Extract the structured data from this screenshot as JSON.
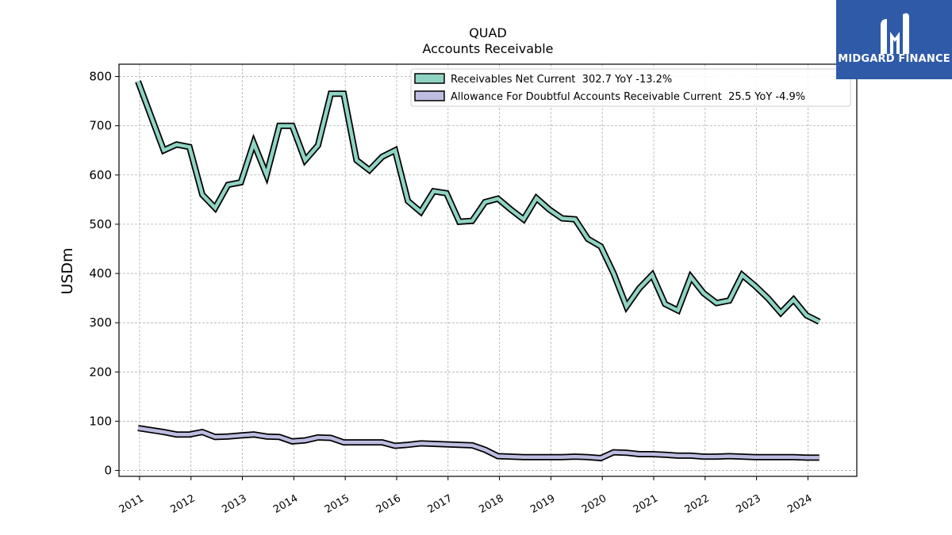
{
  "chart_data": {
    "type": "line",
    "title": "QUAD",
    "subtitle": "Accounts Receivable",
    "xlabel": "",
    "ylabel": "USDm",
    "ylim": [
      -12,
      825
    ],
    "xlim": [
      2010.6,
      2024.95
    ],
    "grid": true,
    "legend_position": "top-right",
    "yticks": [
      0,
      100,
      200,
      300,
      400,
      500,
      600,
      700,
      800
    ],
    "xticks": [
      "2011",
      "2012",
      "2013",
      "2014",
      "2015",
      "2016",
      "2017",
      "2018",
      "2019",
      "2020",
      "2021",
      "2022",
      "2023",
      "2024"
    ],
    "series": [
      {
        "name": "Receivables Net Current  302.7 YoY -13.2%",
        "color": "#8fd3c3",
        "x": [
          2010.97,
          2011.22,
          2011.47,
          2011.72,
          2011.97,
          2012.22,
          2012.47,
          2012.72,
          2012.97,
          2013.22,
          2013.47,
          2013.72,
          2013.97,
          2014.22,
          2014.47,
          2014.72,
          2014.97,
          2015.22,
          2015.47,
          2015.72,
          2015.97,
          2016.22,
          2016.47,
          2016.72,
          2016.97,
          2017.22,
          2017.47,
          2017.72,
          2017.97,
          2018.22,
          2018.47,
          2018.72,
          2018.97,
          2019.22,
          2019.47,
          2019.72,
          2019.97,
          2020.22,
          2020.47,
          2020.72,
          2020.97,
          2021.22,
          2021.47,
          2021.72,
          2021.97,
          2022.22,
          2022.47,
          2022.72,
          2022.97,
          2023.22,
          2023.47,
          2023.72,
          2023.97,
          2024.22
        ],
        "values": [
          790,
          720,
          650,
          662,
          657,
          560,
          533,
          580,
          585,
          665,
          600,
          700,
          700,
          630,
          660,
          765,
          765,
          630,
          610,
          637,
          650,
          547,
          525,
          567,
          563,
          505,
          507,
          545,
          552,
          530,
          510,
          553,
          530,
          512,
          510,
          470,
          455,
          400,
          333,
          370,
          397,
          338,
          325,
          393,
          360,
          340,
          345,
          397,
          375,
          350,
          320,
          347,
          315,
          302
        ]
      },
      {
        "name": "Allowance For Doubtful Accounts Receivable Current  25.5 YoY -4.9%",
        "color": "#bcbde0",
        "x": [
          2010.97,
          2011.22,
          2011.47,
          2011.72,
          2011.97,
          2012.22,
          2012.47,
          2012.72,
          2012.97,
          2013.22,
          2013.47,
          2013.72,
          2013.97,
          2014.22,
          2014.47,
          2014.72,
          2014.97,
          2015.22,
          2015.47,
          2015.72,
          2015.97,
          2016.22,
          2016.47,
          2016.72,
          2016.97,
          2017.22,
          2017.47,
          2017.72,
          2017.97,
          2018.22,
          2018.47,
          2018.72,
          2018.97,
          2019.22,
          2019.47,
          2019.72,
          2019.97,
          2020.22,
          2020.47,
          2020.72,
          2020.97,
          2021.22,
          2021.47,
          2021.72,
          2021.97,
          2022.22,
          2022.47,
          2022.72,
          2022.97,
          2023.22,
          2023.47,
          2023.72,
          2023.97,
          2024.22
        ],
        "values": [
          86,
          82,
          78,
          73,
          73,
          78,
          68,
          69,
          71,
          73,
          69,
          68,
          59,
          61,
          67,
          66,
          57,
          57,
          57,
          57,
          50,
          52,
          55,
          54,
          53,
          52,
          51,
          42,
          29,
          28,
          27,
          27,
          27,
          27,
          28,
          27,
          25,
          37,
          36,
          33,
          33,
          32,
          30,
          30,
          28,
          28,
          29,
          28,
          27,
          27,
          27,
          27,
          26,
          26
        ]
      }
    ]
  },
  "logo": {
    "text": "MIDGARD FINANCE"
  }
}
